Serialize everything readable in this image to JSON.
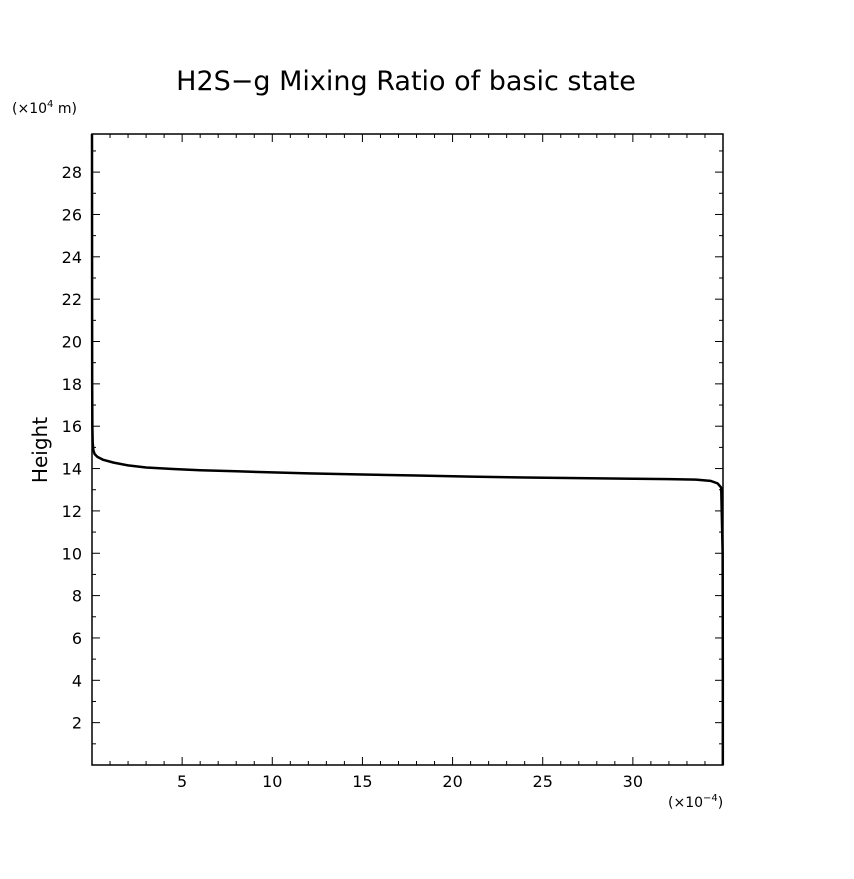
{
  "chart_data": {
    "type": "line",
    "title": "H2S−g Mixing Ratio of basic state",
    "xlabel": "",
    "ylabel": "Height",
    "x_scale_label": "(×10",
    "x_scale_exp": "−4",
    "x_scale_suffix": ")",
    "y_scale_label": "(×10",
    "y_scale_exp": "4",
    "y_scale_suffix": " m)",
    "xlim": [
      0,
      35
    ],
    "ylim": [
      0,
      29.8
    ],
    "x_ticks": [
      5,
      10,
      15,
      20,
      25,
      30
    ],
    "y_ticks": [
      2,
      4,
      6,
      8,
      10,
      12,
      14,
      16,
      18,
      20,
      22,
      24,
      26,
      28
    ],
    "grid": false,
    "color": "#000000",
    "series": [
      {
        "x": [
          34.99,
          34.99,
          34.98,
          34.9,
          34.7,
          34.3,
          33.5,
          32,
          30,
          27,
          24,
          21,
          18,
          15,
          12,
          10,
          8,
          6,
          4.5,
          3,
          2,
          1.2,
          0.6,
          0.3,
          0.15,
          0.08,
          0.04,
          0.02,
          0.01,
          0.005,
          0
        ],
        "y": [
          0,
          4,
          10,
          13.1,
          13.3,
          13.42,
          13.48,
          13.5,
          13.52,
          13.55,
          13.58,
          13.62,
          13.67,
          13.72,
          13.77,
          13.82,
          13.87,
          13.92,
          13.98,
          14.05,
          14.15,
          14.28,
          14.42,
          14.55,
          14.68,
          14.85,
          15.2,
          16,
          18,
          22,
          29.8
        ]
      }
    ]
  }
}
